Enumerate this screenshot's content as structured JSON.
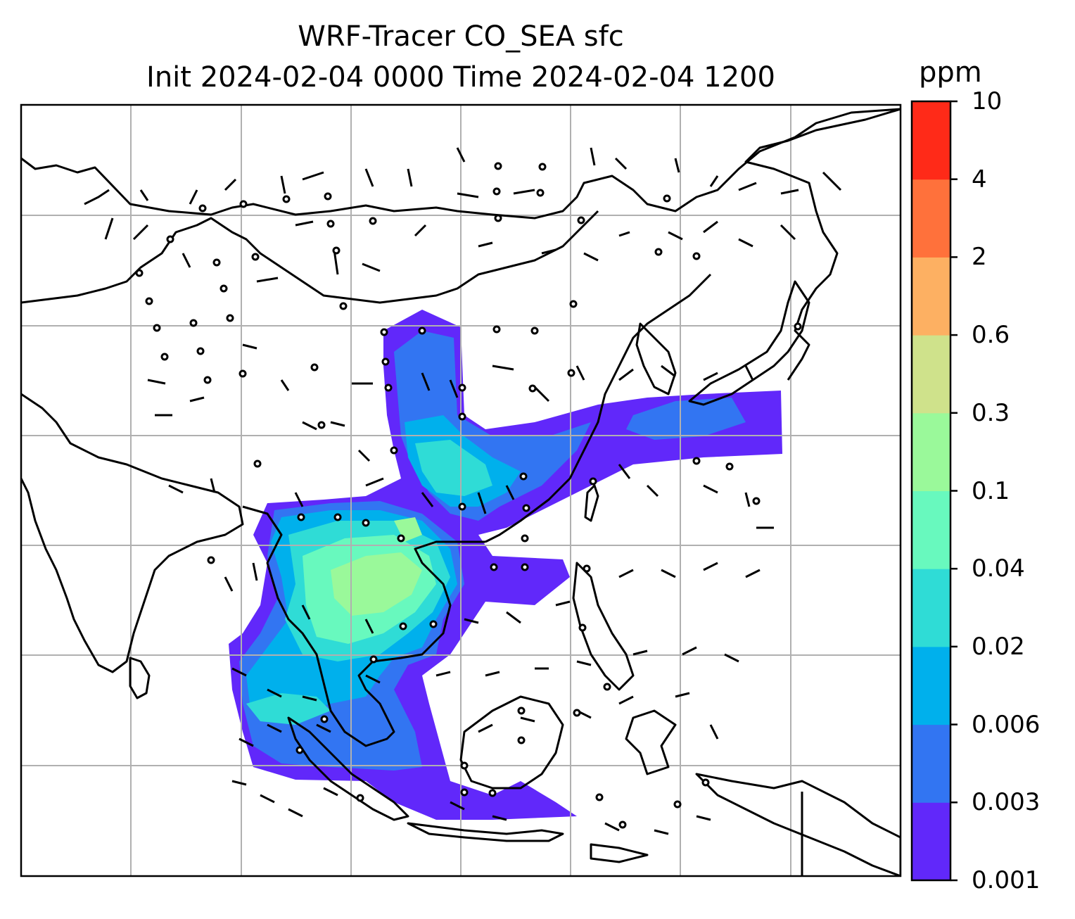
{
  "title": {
    "line1": "WRF-Tracer CO_SEA sfc",
    "line2": "Init 2024-02-04 0000 Time 2024-02-04 1200"
  },
  "colorbar": {
    "unit": "ppm",
    "ticks": [
      "0.001",
      "0.003",
      "0.006",
      "0.02",
      "0.04",
      "0.1",
      "0.3",
      "0.6",
      "2",
      "4",
      "10"
    ],
    "colors": [
      "#6128fa",
      "#3275f2",
      "#00b0ec",
      "#2fdcd6",
      "#68f9be",
      "#9af99a",
      "#cfe28b",
      "#fdb062",
      "#ff713b",
      "#ff2a18"
    ]
  },
  "map": {
    "gridlines": true,
    "line_color": "#000000",
    "grid_color": "#b0b0b0"
  }
}
